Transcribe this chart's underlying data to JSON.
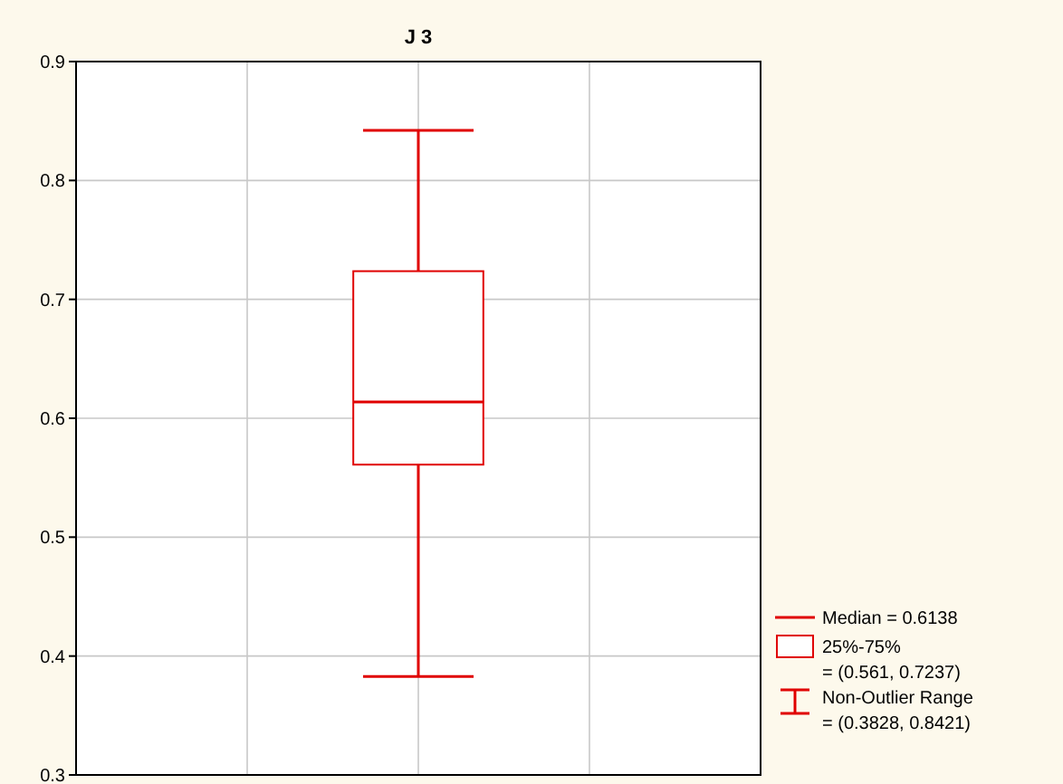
{
  "chart_data": {
    "type": "box",
    "title": "J 3",
    "categories": [
      null
    ],
    "boxes": [
      {
        "low": 0.3828,
        "q1": 0.561,
        "median": 0.6138,
        "q3": 0.7237,
        "high": 0.8421
      }
    ],
    "color": "#e00000",
    "ylim": [
      0.3,
      0.9
    ],
    "yticks": [
      0.3,
      0.4,
      0.5,
      0.6,
      0.7,
      0.8,
      0.9
    ],
    "grid": true,
    "tick_labels": "y",
    "annotations": [
      "Median = 0.6138",
      "25%-75%",
      "= (0.561, 0.7237)",
      "Non-Outlier Range",
      "= (0.3828, 0.8421)"
    ]
  }
}
